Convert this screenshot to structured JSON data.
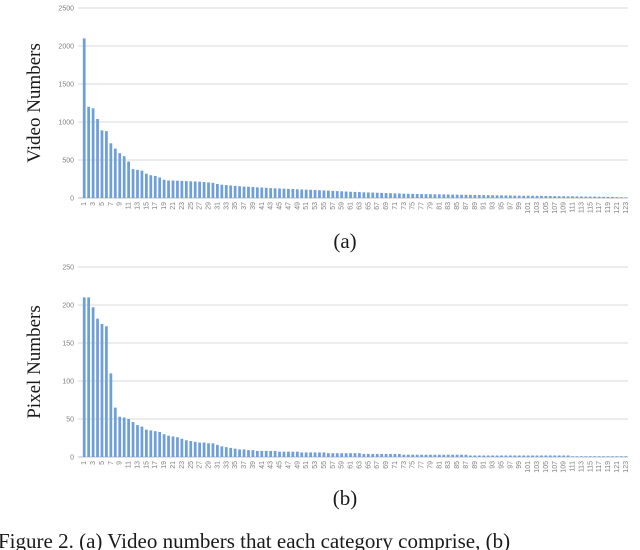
{
  "figure": {
    "panel_labels": [
      "(a)",
      "(b)"
    ],
    "caption": "Figure 2. (a) Video numbers that each category comprise, (b)"
  },
  "chart_data": [
    {
      "type": "bar",
      "ylabel": "Video Numbers",
      "xlabel": "",
      "ylim": [
        0,
        2500
      ],
      "yticks": [
        0,
        500,
        1000,
        1500,
        2000,
        2500
      ],
      "grid": true,
      "categories": [
        1,
        2,
        3,
        4,
        5,
        6,
        7,
        8,
        9,
        10,
        11,
        12,
        13,
        14,
        15,
        16,
        17,
        18,
        19,
        20,
        21,
        22,
        23,
        24,
        25,
        26,
        27,
        28,
        29,
        30,
        31,
        32,
        33,
        34,
        35,
        36,
        37,
        38,
        39,
        40,
        41,
        42,
        43,
        44,
        45,
        46,
        47,
        48,
        49,
        50,
        51,
        52,
        53,
        54,
        55,
        56,
        57,
        58,
        59,
        60,
        61,
        62,
        63,
        64,
        65,
        66,
        67,
        68,
        69,
        70,
        71,
        72,
        73,
        74,
        75,
        76,
        77,
        78,
        79,
        80,
        81,
        82,
        83,
        84,
        85,
        86,
        87,
        88,
        89,
        90,
        91,
        92,
        93,
        94,
        95,
        96,
        97,
        98,
        99,
        100,
        101,
        102,
        103,
        104,
        105,
        106,
        107,
        108,
        109,
        110,
        111,
        112,
        113,
        114,
        115,
        116,
        117,
        118,
        119,
        120,
        121,
        122,
        123
      ],
      "values": [
        2100,
        1200,
        1180,
        1040,
        890,
        880,
        720,
        650,
        590,
        550,
        480,
        380,
        370,
        360,
        320,
        300,
        290,
        270,
        240,
        230,
        230,
        228,
        225,
        222,
        220,
        218,
        215,
        210,
        205,
        200,
        185,
        175,
        170,
        165,
        160,
        155,
        150,
        148,
        145,
        140,
        138,
        135,
        130,
        128,
        125,
        122,
        120,
        118,
        115,
        112,
        110,
        108,
        105,
        102,
        100,
        97,
        94,
        91,
        88,
        85,
        82,
        80,
        78,
        75,
        73,
        71,
        69,
        67,
        65,
        63,
        61,
        59,
        57,
        55,
        54,
        53,
        52,
        51,
        50,
        49,
        48,
        47,
        46,
        45,
        44,
        43,
        42,
        41,
        40,
        39,
        38,
        37,
        36,
        35,
        35,
        34,
        33,
        32,
        31,
        30,
        30,
        29,
        28,
        27,
        27,
        26,
        25,
        24,
        23,
        22,
        22,
        21,
        20,
        19,
        18,
        18,
        17,
        16,
        15,
        14,
        12,
        10,
        8
      ],
      "tick_labels": [
        "1",
        "3",
        "5",
        "7",
        "9",
        "11",
        "13",
        "15",
        "17",
        "19",
        "21",
        "23",
        "25",
        "27",
        "29",
        "31",
        "33",
        "35",
        "37",
        "39",
        "41",
        "43",
        "45",
        "47",
        "49",
        "51",
        "53",
        "55",
        "57",
        "59",
        "61",
        "63",
        "65",
        "67",
        "69",
        "71",
        "73",
        "75",
        "77",
        "79",
        "81",
        "83",
        "85",
        "87",
        "89",
        "91",
        "93",
        "95",
        "97",
        "99",
        "101",
        "103",
        "105",
        "107",
        "109",
        "111",
        "113",
        "115",
        "117",
        "119",
        "121",
        "123"
      ]
    },
    {
      "type": "bar",
      "ylabel": "Pixel Numbers",
      "xlabel": "",
      "ylim": [
        0,
        250
      ],
      "yticks": [
        0,
        50,
        100,
        150,
        200,
        250
      ],
      "grid": true,
      "categories": [
        1,
        2,
        3,
        4,
        5,
        6,
        7,
        8,
        9,
        10,
        11,
        12,
        13,
        14,
        15,
        16,
        17,
        18,
        19,
        20,
        21,
        22,
        23,
        24,
        25,
        26,
        27,
        28,
        29,
        30,
        31,
        32,
        33,
        34,
        35,
        36,
        37,
        38,
        39,
        40,
        41,
        42,
        43,
        44,
        45,
        46,
        47,
        48,
        49,
        50,
        51,
        52,
        53,
        54,
        55,
        56,
        57,
        58,
        59,
        60,
        61,
        62,
        63,
        64,
        65,
        66,
        67,
        68,
        69,
        70,
        71,
        72,
        73,
        74,
        75,
        76,
        77,
        78,
        79,
        80,
        81,
        82,
        83,
        84,
        85,
        86,
        87,
        88,
        89,
        90,
        91,
        92,
        93,
        94,
        95,
        96,
        97,
        98,
        99,
        100,
        101,
        102,
        103,
        104,
        105,
        106,
        107,
        108,
        109,
        110,
        111,
        112,
        113,
        114,
        115,
        116,
        117,
        118,
        119,
        120,
        121,
        122,
        123
      ],
      "values": [
        210,
        210,
        197,
        182,
        175,
        172,
        110,
        65,
        53,
        52,
        50,
        46,
        42,
        40,
        36,
        35,
        34,
        33,
        30,
        28,
        27,
        26,
        24,
        22,
        21,
        20,
        19,
        19,
        18,
        18,
        16,
        14,
        13,
        12,
        11,
        10,
        10,
        9,
        9,
        8,
        8,
        8,
        8,
        8,
        7,
        7,
        7,
        7,
        7,
        6,
        6,
        6,
        6,
        6,
        6,
        5,
        5,
        5,
        5,
        5,
        5,
        5,
        5,
        4,
        4,
        4,
        4,
        4,
        4,
        4,
        4,
        4,
        3,
        3,
        3,
        3,
        3,
        3,
        3,
        3,
        3,
        3,
        3,
        3,
        3,
        3,
        3,
        2,
        2,
        2,
        2,
        2,
        2,
        2,
        2,
        2,
        2,
        2,
        2,
        2,
        2,
        2,
        2,
        2,
        2,
        2,
        2,
        2,
        2,
        2,
        1,
        1,
        1,
        1,
        1,
        1,
        1,
        1,
        1,
        1,
        1,
        1,
        1
      ],
      "tick_labels": [
        "1",
        "3",
        "5",
        "7",
        "9",
        "11",
        "13",
        "15",
        "17",
        "19",
        "21",
        "23",
        "25",
        "27",
        "29",
        "31",
        "33",
        "35",
        "37",
        "39",
        "41",
        "43",
        "45",
        "47",
        "49",
        "51",
        "53",
        "55",
        "57",
        "59",
        "61",
        "63",
        "65",
        "67",
        "69",
        "71",
        "73",
        "75",
        "77",
        "79",
        "81",
        "83",
        "85",
        "87",
        "89",
        "91",
        "93",
        "95",
        "97",
        "99",
        "101",
        "103",
        "105",
        "107",
        "109",
        "111",
        "113",
        "115",
        "117",
        "119",
        "121",
        "123"
      ]
    }
  ]
}
